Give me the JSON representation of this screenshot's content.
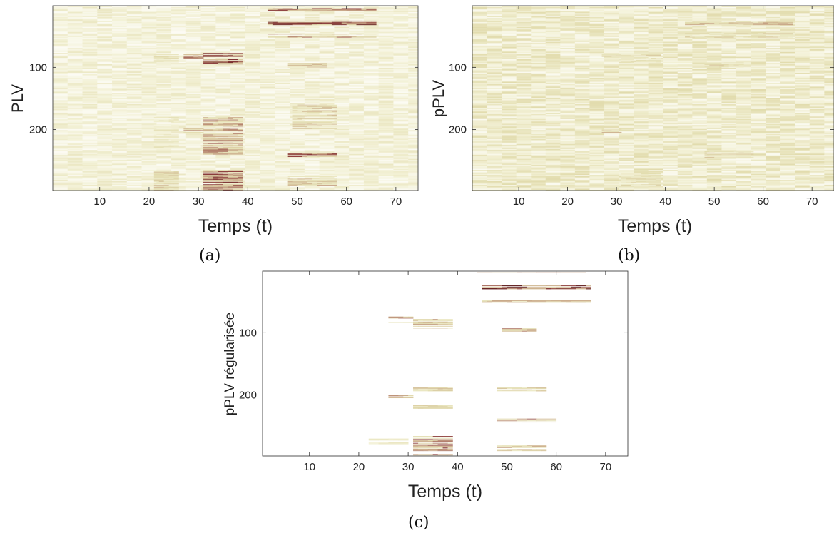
{
  "chart_data": [
    {
      "type": "heatmap",
      "id": "a",
      "caption": "(a)",
      "xlabel": "Temps (t)",
      "ylabel": "PLV",
      "xlim": [
        0.5,
        74.5
      ],
      "ylim": [
        1,
        298
      ],
      "y_reversed": true,
      "xticks": [
        10,
        20,
        30,
        40,
        50,
        60,
        70
      ],
      "yticks": [
        100,
        200
      ],
      "colormap": [
        "#ffffff",
        "#f3f1d6",
        "#e2dcae",
        "#c9a788",
        "#8c3b3b",
        "#5a1a1a"
      ],
      "background_intensity": 0.22,
      "bands": [
        {
          "x": [
            44,
            66
          ],
          "y": [
            5,
            10
          ],
          "v": 0.8
        },
        {
          "x": [
            44,
            66
          ],
          "y": [
            25,
            32
          ],
          "v": 0.9
        },
        {
          "x": [
            44,
            66
          ],
          "y": [
            45,
            52
          ],
          "v": 0.7
        },
        {
          "x": [
            21,
            26
          ],
          "y": [
            78,
            92
          ],
          "v": 0.45
        },
        {
          "x": [
            27,
            31
          ],
          "y": [
            78,
            86
          ],
          "v": 0.75
        },
        {
          "x": [
            31,
            39
          ],
          "y": [
            75,
            95
          ],
          "v": 0.85
        },
        {
          "x": [
            48,
            56
          ],
          "y": [
            92,
            100
          ],
          "v": 0.6
        },
        {
          "x": [
            21,
            26
          ],
          "y": [
            180,
            230
          ],
          "v": 0.35
        },
        {
          "x": [
            27,
            31
          ],
          "y": [
            198,
            205
          ],
          "v": 0.75
        },
        {
          "x": [
            31,
            39
          ],
          "y": [
            180,
            240
          ],
          "v": 0.7
        },
        {
          "x": [
            49,
            58
          ],
          "y": [
            160,
            200
          ],
          "v": 0.5
        },
        {
          "x": [
            48,
            58
          ],
          "y": [
            235,
            245
          ],
          "v": 0.8
        },
        {
          "x": [
            21,
            26
          ],
          "y": [
            265,
            298
          ],
          "v": 0.5
        },
        {
          "x": [
            31,
            39
          ],
          "y": [
            265,
            298
          ],
          "v": 0.85
        },
        {
          "x": [
            48,
            58
          ],
          "y": [
            275,
            290
          ],
          "v": 0.6
        }
      ]
    },
    {
      "type": "heatmap",
      "id": "b",
      "caption": "(b)",
      "xlabel": "Temps (t)",
      "ylabel": "pPLV",
      "xlim": [
        0.5,
        74.5
      ],
      "ylim": [
        1,
        298
      ],
      "y_reversed": true,
      "xticks": [
        10,
        20,
        30,
        40,
        50,
        60,
        70
      ],
      "yticks": [
        100,
        200
      ],
      "colormap": [
        "#ffffff",
        "#f3f1d6",
        "#e2dcae",
        "#c9a788",
        "#8c3b3b",
        "#5a1a1a"
      ],
      "background_intensity": 0.3,
      "bands": [
        {
          "x": [
            44,
            66
          ],
          "y": [
            25,
            32
          ],
          "v": 0.6
        },
        {
          "x": [
            44,
            66
          ],
          "y": [
            45,
            52
          ],
          "v": 0.45
        },
        {
          "x": [
            27,
            31
          ],
          "y": [
            78,
            84
          ],
          "v": 0.5
        },
        {
          "x": [
            31,
            39
          ],
          "y": [
            78,
            92
          ],
          "v": 0.45
        },
        {
          "x": [
            48,
            56
          ],
          "y": [
            92,
            100
          ],
          "v": 0.5
        },
        {
          "x": [
            27,
            31
          ],
          "y": [
            198,
            205
          ],
          "v": 0.55
        },
        {
          "x": [
            48,
            58
          ],
          "y": [
            235,
            245
          ],
          "v": 0.55
        },
        {
          "x": [
            31,
            39
          ],
          "y": [
            270,
            290
          ],
          "v": 0.45
        }
      ]
    },
    {
      "type": "heatmap",
      "id": "c",
      "caption": "(c)",
      "xlabel": "Temps (t)",
      "ylabel": "pPLV régularisée",
      "xlim": [
        0.5,
        74.5
      ],
      "ylim": [
        1,
        298
      ],
      "y_reversed": true,
      "xticks": [
        10,
        20,
        30,
        40,
        50,
        60,
        70
      ],
      "yticks": [
        100,
        200
      ],
      "colormap": [
        "#ffffff",
        "#f3f1d6",
        "#e2dcae",
        "#c9a788",
        "#8c3b3b",
        "#5a1a1a"
      ],
      "background_intensity": 0.0,
      "bands": [
        {
          "x": [
            44,
            66
          ],
          "y": [
            1,
            4
          ],
          "v": 0.7
        },
        {
          "x": [
            45,
            67
          ],
          "y": [
            24,
            30
          ],
          "v": 0.95
        },
        {
          "x": [
            45,
            67
          ],
          "y": [
            48,
            52
          ],
          "v": 0.6
        },
        {
          "x": [
            26,
            31
          ],
          "y": [
            74,
            78
          ],
          "v": 0.7
        },
        {
          "x": [
            26,
            31
          ],
          "y": [
            82,
            86
          ],
          "v": 0.55
        },
        {
          "x": [
            31,
            39
          ],
          "y": [
            78,
            94
          ],
          "v": 0.6
        },
        {
          "x": [
            49,
            56
          ],
          "y": [
            93,
            98
          ],
          "v": 0.7
        },
        {
          "x": [
            26,
            31
          ],
          "y": [
            200,
            205
          ],
          "v": 0.75
        },
        {
          "x": [
            31,
            39
          ],
          "y": [
            188,
            194
          ],
          "v": 0.5
        },
        {
          "x": [
            31,
            39
          ],
          "y": [
            214,
            222
          ],
          "v": 0.45
        },
        {
          "x": [
            48,
            58
          ],
          "y": [
            188,
            194
          ],
          "v": 0.5
        },
        {
          "x": [
            48,
            60
          ],
          "y": [
            238,
            244
          ],
          "v": 0.8
        },
        {
          "x": [
            31,
            39
          ],
          "y": [
            265,
            298
          ],
          "v": 0.8
        },
        {
          "x": [
            22,
            30
          ],
          "y": [
            270,
            280
          ],
          "v": 0.35
        },
        {
          "x": [
            48,
            58
          ],
          "y": [
            280,
            290
          ],
          "v": 0.6
        }
      ]
    }
  ]
}
